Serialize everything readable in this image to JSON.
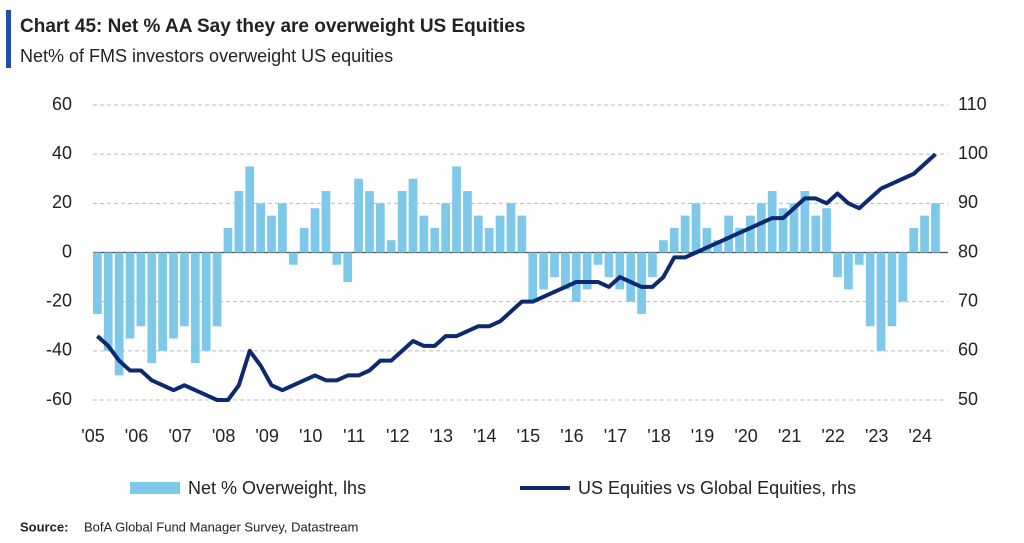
{
  "chart_data": {
    "type": "bar_line",
    "title": "Chart 45: Net % AA Say they are overweight US Equities",
    "subtitle": "Net% of FMS investors overweight US equities",
    "source_label": "Source:",
    "source": "BofA Global Fund Manager Survey, Datastream",
    "x": [
      2005,
      2005.25,
      2005.5,
      2005.75,
      2006,
      2006.25,
      2006.5,
      2006.75,
      2007,
      2007.25,
      2007.5,
      2007.75,
      2008,
      2008.25,
      2008.5,
      2008.75,
      2009,
      2009.25,
      2009.5,
      2009.75,
      2010,
      2010.25,
      2010.5,
      2010.75,
      2011,
      2011.25,
      2011.5,
      2011.75,
      2012,
      2012.25,
      2012.5,
      2012.75,
      2013,
      2013.25,
      2013.5,
      2013.75,
      2014,
      2014.25,
      2014.5,
      2014.75,
      2015,
      2015.25,
      2015.5,
      2015.75,
      2016,
      2016.25,
      2016.5,
      2016.75,
      2017,
      2017.25,
      2017.5,
      2017.75,
      2018,
      2018.25,
      2018.5,
      2018.75,
      2019,
      2019.25,
      2019.5,
      2019.75,
      2020,
      2020.25,
      2020.5,
      2020.75,
      2021,
      2021.25,
      2021.5,
      2021.75,
      2022,
      2022.25,
      2022.5,
      2022.75,
      2023,
      2023.25,
      2023.5,
      2023.75,
      2024,
      2024.25
    ],
    "series": [
      {
        "name": "Net % Overweight, lhs",
        "color": "#7ec8ea",
        "kind": "bar",
        "values": [
          -25,
          -40,
          -50,
          -35,
          -30,
          -45,
          -40,
          -35,
          -30,
          -45,
          -40,
          -30,
          10,
          25,
          35,
          20,
          15,
          20,
          -5,
          10,
          18,
          25,
          -5,
          -12,
          30,
          25,
          20,
          5,
          25,
          30,
          15,
          10,
          20,
          35,
          25,
          15,
          10,
          15,
          20,
          15,
          -20,
          -15,
          -10,
          -15,
          -20,
          -15,
          -5,
          -10,
          -15,
          -20,
          -25,
          -10,
          5,
          10,
          15,
          20,
          10,
          5,
          15,
          10,
          15,
          20,
          25,
          18,
          20,
          25,
          15,
          18,
          -10,
          -15,
          -5,
          -30,
          -40,
          -30,
          -20,
          10,
          15,
          20
        ]
      },
      {
        "name": "US Equities vs Global Equities, rhs",
        "color": "#0b2a6f",
        "kind": "line",
        "axis": "y2",
        "values": [
          63,
          61,
          58,
          56,
          56,
          54,
          53,
          52,
          53,
          52,
          51,
          50,
          50,
          53,
          60,
          57,
          53,
          52,
          53,
          54,
          55,
          54,
          54,
          55,
          55,
          56,
          58,
          58,
          60,
          62,
          61,
          61,
          63,
          63,
          64,
          65,
          65,
          66,
          68,
          70,
          70,
          71,
          72,
          73,
          74,
          74,
          74,
          73,
          75,
          74,
          73,
          73,
          75,
          79,
          79,
          80,
          81,
          82,
          83,
          84,
          85,
          86,
          87,
          87,
          89,
          91,
          91,
          90,
          92,
          90,
          89,
          91,
          93,
          94,
          95,
          96,
          98,
          100
        ]
      }
    ],
    "xlim": [
      2005,
      2024.5
    ],
    "xticks": [
      {
        "value": 2005,
        "label": "'05"
      },
      {
        "value": 2006,
        "label": "'06"
      },
      {
        "value": 2007,
        "label": "'07"
      },
      {
        "value": 2008,
        "label": "'08"
      },
      {
        "value": 2009,
        "label": "'09"
      },
      {
        "value": 2010,
        "label": "'10"
      },
      {
        "value": 2011,
        "label": "'11"
      },
      {
        "value": 2012,
        "label": "'12"
      },
      {
        "value": 2013,
        "label": "'13"
      },
      {
        "value": 2014,
        "label": "'14"
      },
      {
        "value": 2015,
        "label": "'15"
      },
      {
        "value": 2016,
        "label": "'16"
      },
      {
        "value": 2017,
        "label": "'17"
      },
      {
        "value": 2018,
        "label": "'18"
      },
      {
        "value": 2019,
        "label": "'19"
      },
      {
        "value": 2020,
        "label": "'20"
      },
      {
        "value": 2021,
        "label": "'21"
      },
      {
        "value": 2022,
        "label": "'22"
      },
      {
        "value": 2023,
        "label": "'23"
      },
      {
        "value": 2024,
        "label": "'24"
      }
    ],
    "ylim": [
      -60,
      60
    ],
    "yticks": [
      -60,
      -40,
      -20,
      0,
      20,
      40,
      60
    ],
    "y2lim": [
      50,
      110
    ],
    "y2ticks": [
      50,
      60,
      70,
      80,
      90,
      100,
      110
    ],
    "grid": true,
    "legend": "bottom"
  }
}
